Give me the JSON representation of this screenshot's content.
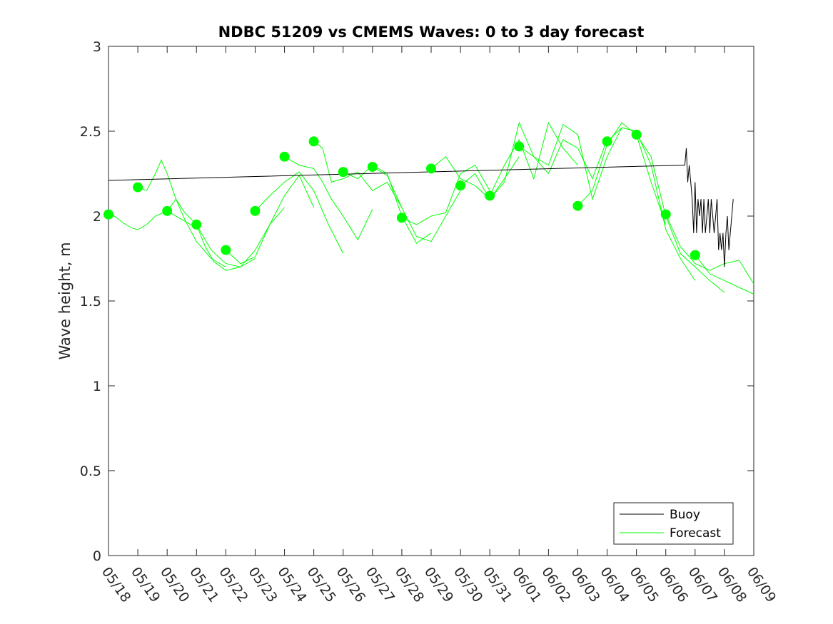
{
  "chart_data": {
    "type": "line",
    "title": "NDBC 51209 vs CMEMS Waves: 0 to 3 day forecast",
    "xlabel": "",
    "ylabel": "Wave height, m",
    "ylim": [
      0,
      3
    ],
    "yticks": [
      "0",
      "0.5",
      "1",
      "1.5",
      "2",
      "2.5",
      "3"
    ],
    "x_dates": [
      "05/18",
      "05/19",
      "05/20",
      "05/21",
      "05/22",
      "05/23",
      "05/24",
      "05/25",
      "05/26",
      "05/27",
      "05/28",
      "05/29",
      "05/30",
      "05/31",
      "06/01",
      "06/02",
      "06/03",
      "06/04",
      "06/05",
      "06/06",
      "06/07",
      "06/08",
      "06/09"
    ],
    "grid": false,
    "legend_placement": "bottom-right",
    "legend": [
      "Buoy",
      "Forecast"
    ],
    "colors": {
      "buoy": "#000000",
      "forecast": "#00ff00",
      "axis": "#262626"
    },
    "series": [
      {
        "name": "Buoy",
        "x": [
          0,
          19.6,
          19.65,
          19.7,
          19.75,
          19.8,
          19.85,
          19.9,
          19.95,
          20.0,
          20.05,
          20.1,
          20.15,
          20.2,
          20.25,
          20.3,
          20.35,
          20.4,
          20.45,
          20.5,
          20.55,
          20.6,
          20.65,
          20.7,
          20.75,
          20.8,
          20.85,
          20.9,
          20.95,
          21.0,
          21.05,
          21.1,
          21.15,
          21.2,
          21.25,
          21.3
        ],
        "values": [
          2.21,
          2.3,
          2.3,
          2.4,
          2.2,
          2.3,
          2.2,
          2.1,
          1.9,
          2.2,
          1.9,
          2.1,
          2.0,
          2.1,
          1.9,
          2.1,
          1.9,
          2.0,
          2.1,
          1.9,
          2.1,
          2.0,
          1.9,
          2.0,
          2.1,
          1.8,
          1.9,
          1.8,
          1.9,
          1.7,
          1.9,
          2.0,
          1.8,
          1.9,
          2.0,
          2.1
        ]
      },
      {
        "name": "Forecast",
        "runs": [
          {
            "x": [
              0,
              0.2,
              0.5,
              0.8,
              1.0,
              1.3,
              1.6,
              2.0,
              2.5,
              3.0
            ],
            "values": [
              2.01,
              2.0,
              1.96,
              1.93,
              1.92,
              1.95,
              2.0,
              2.03,
              1.98,
              1.93
            ]
          },
          {
            "x": [
              1.0,
              1.3,
              1.6,
              1.8,
              2.0,
              2.3,
              2.6,
              3.0,
              3.5,
              4.0
            ],
            "values": [
              2.17,
              2.15,
              2.25,
              2.33,
              2.25,
              2.1,
              1.98,
              1.85,
              1.75,
              1.7
            ]
          },
          {
            "x": [
              2.0,
              2.3,
              2.6,
              3.0,
              3.5,
              4.0,
              4.5,
              5.0
            ],
            "values": [
              2.03,
              2.1,
              2.02,
              1.95,
              1.8,
              1.72,
              1.7,
              1.75
            ]
          },
          {
            "x": [
              3.0,
              3.3,
              3.6,
              4.0,
              4.5,
              5.0,
              5.5,
              6.0
            ],
            "values": [
              1.95,
              1.82,
              1.73,
              1.68,
              1.7,
              1.8,
              1.95,
              2.05
            ]
          },
          {
            "x": [
              4.0,
              4.5,
              5.0,
              5.5,
              6.0,
              6.5,
              7.0
            ],
            "values": [
              1.8,
              1.72,
              1.76,
              1.95,
              2.12,
              2.24,
              2.05
            ]
          },
          {
            "x": [
              5.0,
              5.5,
              6.0,
              6.5,
              7.0,
              7.5,
              8.0
            ],
            "values": [
              2.03,
              2.12,
              2.2,
              2.26,
              2.15,
              1.95,
              1.78
            ]
          },
          {
            "x": [
              6.0,
              6.5,
              7.0,
              7.3,
              7.6,
              8.0,
              8.5,
              9.0
            ],
            "values": [
              2.35,
              2.3,
              2.28,
              2.2,
              2.1,
              2.0,
              1.86,
              2.04
            ]
          },
          {
            "x": [
              7.0,
              7.3,
              7.6,
              8.0,
              8.5,
              9.0,
              9.5,
              10.0
            ],
            "values": [
              2.44,
              2.4,
              2.2,
              2.22,
              2.26,
              2.15,
              2.2,
              2.05
            ]
          },
          {
            "x": [
              8.0,
              8.5,
              9.0,
              9.5,
              10.0,
              10.5,
              11.0
            ],
            "values": [
              2.26,
              2.22,
              2.3,
              2.25,
              2.0,
              1.84,
              1.9
            ]
          },
          {
            "x": [
              9.0,
              9.5,
              10.0,
              10.5,
              11.0,
              11.5,
              12.0
            ],
            "values": [
              2.29,
              2.24,
              2.05,
              1.88,
              1.85,
              2.0,
              2.15
            ]
          },
          {
            "x": [
              10.0,
              10.5,
              11.0,
              11.5,
              12.0,
              12.5,
              13.0
            ],
            "values": [
              1.99,
              1.95,
              2.0,
              2.02,
              2.25,
              2.3,
              2.15
            ]
          },
          {
            "x": [
              11.0,
              11.5,
              12.0,
              12.5,
              13.0,
              13.5,
              14.0
            ],
            "values": [
              2.28,
              2.35,
              2.22,
              2.18,
              2.1,
              2.22,
              2.35
            ]
          },
          {
            "x": [
              12.0,
              12.5,
              13.0,
              13.5,
              14.0,
              14.5,
              15.0
            ],
            "values": [
              2.18,
              2.25,
              2.1,
              2.2,
              2.55,
              2.35,
              2.3
            ]
          },
          {
            "x": [
              13.0,
              13.5,
              14.0,
              14.5,
              15.0,
              15.5,
              16.0
            ],
            "values": [
              2.12,
              2.3,
              2.45,
              2.22,
              2.55,
              2.4,
              2.3
            ]
          },
          {
            "x": [
              14.0,
              14.5,
              15.0,
              15.5,
              16.0,
              16.5,
              17.0
            ],
            "values": [
              2.41,
              2.35,
              2.25,
              2.45,
              2.4,
              2.22,
              2.45
            ]
          },
          {
            "x": [
              15.0,
              15.5,
              16.0,
              16.5,
              17.0,
              17.5,
              18.0
            ],
            "values": [
              2.3,
              2.54,
              2.48,
              2.1,
              2.35,
              2.52,
              2.5
            ]
          },
          {
            "x": [
              16.0,
              16.5,
              17.0,
              17.5,
              18.0,
              18.5,
              19.0
            ],
            "values": [
              2.06,
              2.15,
              2.42,
              2.55,
              2.48,
              2.2,
              1.95
            ]
          },
          {
            "x": [
              17.0,
              17.5,
              18.0,
              18.5,
              19.0,
              19.5,
              20.0
            ],
            "values": [
              2.44,
              2.52,
              2.5,
              2.3,
              1.92,
              1.75,
              1.62
            ]
          },
          {
            "x": [
              18.0,
              18.5,
              19.0,
              19.5,
              20.0,
              20.5,
              21.0
            ],
            "values": [
              2.48,
              2.35,
              2.0,
              1.78,
              1.7,
              1.62,
              1.55
            ]
          },
          {
            "x": [
              19.0,
              19.5,
              20.0,
              20.5,
              21.0,
              21.5,
              22.0
            ],
            "values": [
              2.01,
              1.82,
              1.72,
              1.68,
              1.72,
              1.74,
              1.6
            ]
          },
          {
            "x": [
              20.0,
              20.5,
              21.0,
              21.5,
              22.0
            ],
            "values": [
              1.77,
              1.66,
              1.62,
              1.58,
              1.54
            ]
          }
        ]
      }
    ],
    "markers": {
      "x": [
        0,
        1,
        2,
        3,
        4,
        5,
        6,
        7,
        8,
        9,
        10,
        11,
        12,
        13,
        14,
        16,
        17,
        18,
        19,
        20
      ],
      "values": [
        2.01,
        2.17,
        2.03,
        1.95,
        1.8,
        2.03,
        2.35,
        2.44,
        2.26,
        2.29,
        1.99,
        2.28,
        2.18,
        2.12,
        2.41,
        2.06,
        2.44,
        2.48,
        2.01,
        1.77
      ]
    }
  }
}
